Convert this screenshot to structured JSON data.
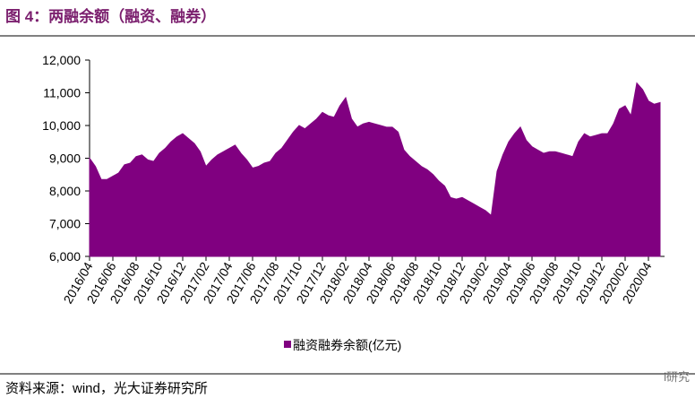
{
  "chart_data": {
    "type": "area",
    "title": "图 4：两融余额（融资、融券）",
    "source": "资料来源：wind，光大证券研究所",
    "watermark": "i研究",
    "categories": [
      "2016/04",
      null,
      null,
      null,
      "2016/06",
      null,
      null,
      null,
      "2016/08",
      null,
      null,
      null,
      "2016/10",
      null,
      null,
      null,
      "2016/12",
      null,
      null,
      null,
      "2017/02",
      null,
      null,
      null,
      "2017/04",
      null,
      null,
      null,
      "2017/06",
      null,
      null,
      null,
      "2017/08",
      null,
      null,
      null,
      "2017/10",
      null,
      null,
      null,
      "2017/12",
      null,
      null,
      null,
      "2018/02",
      null,
      null,
      null,
      "2018/04",
      null,
      null,
      null,
      "2018/06",
      null,
      null,
      null,
      "2018/08",
      null,
      null,
      null,
      "2018/10",
      null,
      null,
      null,
      "2018/12",
      null,
      null,
      null,
      "2019/02",
      null,
      null,
      null,
      "2019/04",
      null,
      null,
      null,
      "2019/06",
      null,
      null,
      null,
      "2019/08",
      null,
      null,
      null,
      "2019/10",
      null,
      null,
      null,
      "2019/12",
      null,
      null,
      null,
      "2020/02",
      null,
      null,
      null,
      "2020/04",
      null,
      null
    ],
    "series": [
      {
        "name": "融资融券余额(亿元)",
        "color": "#800080",
        "values": [
          9000,
          8750,
          8350,
          8350,
          8450,
          8550,
          8800,
          8850,
          9050,
          9100,
          8950,
          8900,
          9150,
          9300,
          9500,
          9650,
          9750,
          9600,
          9450,
          9200,
          8750,
          8950,
          9100,
          9200,
          9300,
          9400,
          9150,
          8950,
          8700,
          8750,
          8850,
          8900,
          9150,
          9300,
          9550,
          9800,
          10000,
          9900,
          10050,
          10200,
          10400,
          10300,
          10250,
          10600,
          10850,
          10200,
          9950,
          10050,
          10100,
          10050,
          10000,
          9950,
          9950,
          9800,
          9250,
          9050,
          8900,
          8750,
          8650,
          8500,
          8300,
          8150,
          7800,
          7750,
          7800,
          7700,
          7600,
          7500,
          7400,
          7250,
          8600,
          9100,
          9500,
          9750,
          9950,
          9550,
          9350,
          9250,
          9150,
          9200,
          9200,
          9150,
          9100,
          9050,
          9500,
          9750,
          9650,
          9700,
          9750,
          9750,
          10050,
          10500,
          10600,
          10300,
          11300,
          11100,
          10750,
          10650,
          10700
        ]
      }
    ],
    "ylim": [
      6000,
      12000
    ],
    "yticks": [
      {
        "value": 6000,
        "label": "6,000"
      },
      {
        "value": 7000,
        "label": "7,000"
      },
      {
        "value": 8000,
        "label": "8,000"
      },
      {
        "value": 9000,
        "label": "9,000"
      },
      {
        "value": 10000,
        "label": "10,000"
      },
      {
        "value": 11000,
        "label": "11,000"
      },
      {
        "value": 12000,
        "label": "12,000"
      }
    ],
    "legend": "bottom"
  }
}
